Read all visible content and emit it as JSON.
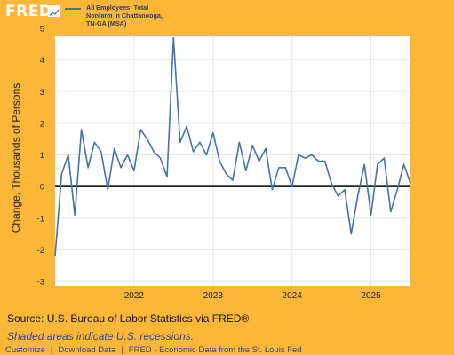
{
  "logo": {
    "text": "FRED"
  },
  "series_label": "All Employees: Total Nonfarm in Chattanooga, TN-GA (MSA)",
  "y_axis_title": "Change, Thousands of Persons",
  "source_text": "Source: U.S. Bureau of Labor Statistics via FRED®",
  "note_text": "Shaded areas indicate U.S. recessions.",
  "footer": {
    "customize": "Customize",
    "download": "Download Data",
    "fred_link": "FRED - Economic Data from the St. Louis Fed"
  },
  "colors": {
    "background": "#fcb638",
    "plot_bg": "#ffffff",
    "line": "#4572a7",
    "zero_line": "#000000"
  },
  "chart_data": {
    "type": "line",
    "title": "",
    "ylabel": "Change, Thousands of Persons",
    "xlabel": "",
    "ylim": [
      -3,
      5
    ],
    "xlim": [
      2021.0,
      2025.5
    ],
    "y_ticks": [
      5,
      4,
      3,
      2,
      1,
      0,
      -1,
      -2,
      -3
    ],
    "x_ticks": [
      {
        "label": "2022",
        "value": 2022
      },
      {
        "label": "2023",
        "value": 2023
      },
      {
        "label": "2024",
        "value": 2024
      },
      {
        "label": "2025",
        "value": 2025
      }
    ],
    "grid": true,
    "legend": "top-left",
    "series": [
      {
        "name": "All Employees: Total Nonfarm in Chattanooga, TN-GA (MSA)",
        "x": [
          2021.0,
          2021.083,
          2021.167,
          2021.25,
          2021.333,
          2021.417,
          2021.5,
          2021.583,
          2021.667,
          2021.75,
          2021.833,
          2021.917,
          2022.0,
          2022.083,
          2022.167,
          2022.25,
          2022.333,
          2022.417,
          2022.5,
          2022.583,
          2022.667,
          2022.75,
          2022.833,
          2022.917,
          2023.0,
          2023.083,
          2023.167,
          2023.25,
          2023.333,
          2023.417,
          2023.5,
          2023.583,
          2023.667,
          2023.75,
          2023.833,
          2023.917,
          2024.0,
          2024.083,
          2024.167,
          2024.25,
          2024.333,
          2024.417,
          2024.5,
          2024.583,
          2024.667,
          2024.75,
          2024.833,
          2024.917,
          2025.0,
          2025.083,
          2025.167,
          2025.25,
          2025.333,
          2025.417,
          2025.5
        ],
        "values": [
          -2.2,
          0.4,
          1.0,
          -0.9,
          1.8,
          0.6,
          1.4,
          1.1,
          -0.1,
          1.2,
          0.6,
          1.0,
          0.5,
          1.8,
          1.5,
          1.1,
          0.9,
          0.3,
          4.7,
          1.4,
          1.9,
          1.1,
          1.4,
          1.0,
          1.7,
          0.8,
          0.4,
          0.2,
          1.4,
          0.5,
          1.3,
          0.8,
          1.2,
          -0.1,
          0.6,
          0.6,
          0.0,
          1.0,
          0.9,
          1.0,
          0.8,
          0.8,
          0.1,
          -0.3,
          -0.1,
          -1.5,
          -0.3,
          0.7,
          -0.9,
          0.7,
          0.9,
          -0.8,
          -0.1,
          0.7,
          0.1
        ]
      }
    ]
  }
}
